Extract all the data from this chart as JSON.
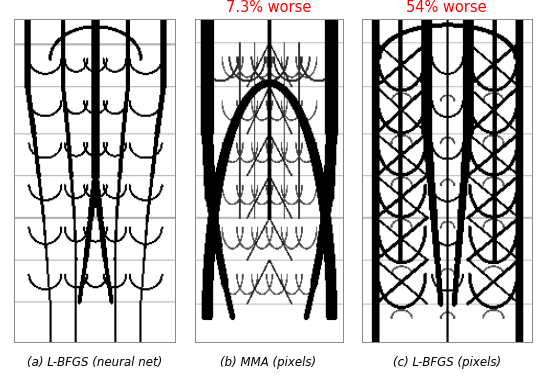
{
  "title_b": "7.3% worse",
  "title_c": "54% worse",
  "label_a": "(a) L-BFGS (neural net)",
  "label_b": "(b) MMA (pixels)",
  "label_c": "(c) L-BFGS (pixels)",
  "title_color": "#ff0000",
  "label_color": "#000000",
  "bg_color": "#ffffff",
  "fig_width": 5.48,
  "fig_height": 3.78,
  "dpi": 100,
  "title_fontsize": 10.5,
  "label_fontsize": 8.5
}
